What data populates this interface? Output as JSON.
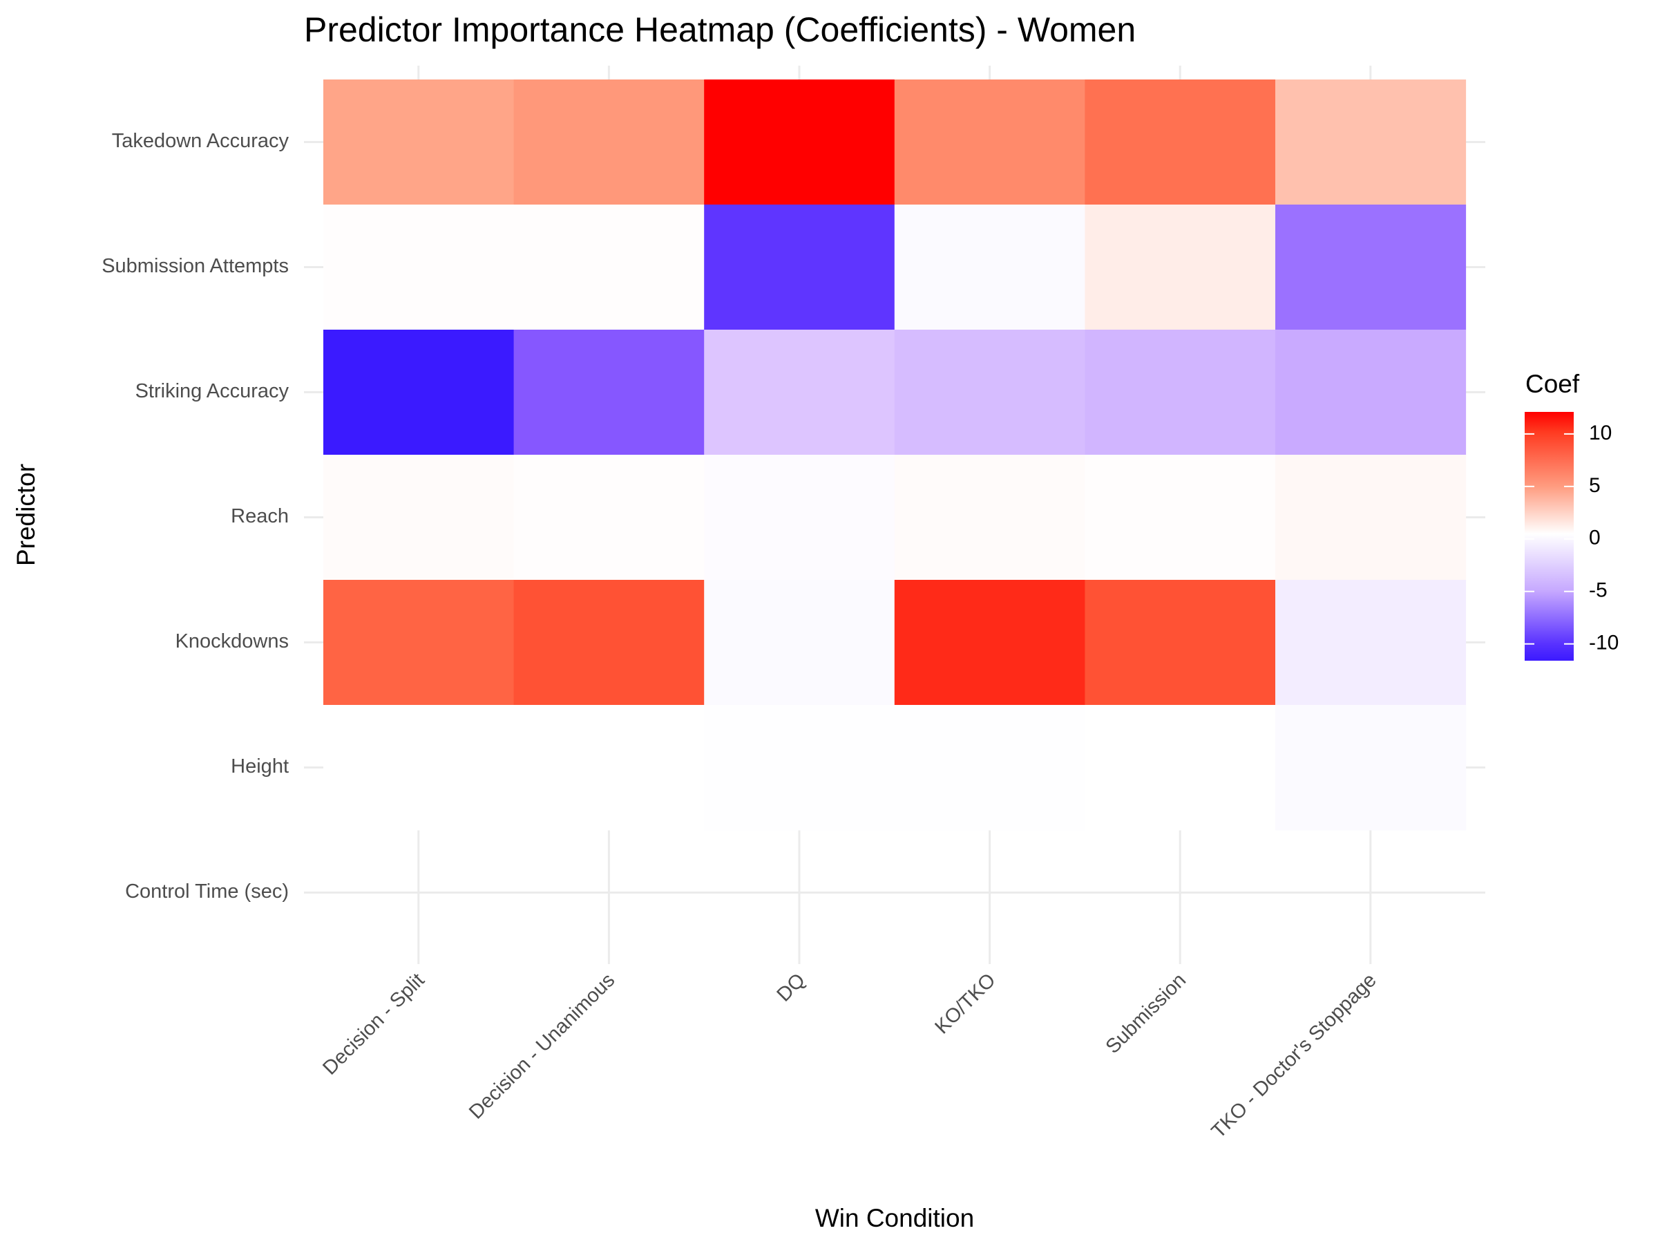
{
  "chart_data": {
    "type": "heatmap",
    "title": "Predictor Importance Heatmap (Coefficients) - Women",
    "xlabel": "Win Condition",
    "ylabel": "Predictor",
    "x_categories": [
      "Decision - Split",
      "Decision - Unanimous",
      "DQ",
      "KO/TKO",
      "Submission",
      "TKO - Doctor's Stoppage"
    ],
    "y_categories": [
      "Takedown Accuracy",
      "Submission Attempts",
      "Striking Accuracy",
      "Reach",
      "Knockdowns",
      "Height",
      "Control Time (sec)"
    ],
    "values": [
      [
        6.0,
        7.0,
        12.1,
        8.0,
        9.0,
        3.5
      ],
      [
        0.1,
        0.1,
        -10.0,
        -0.3,
        1.0,
        -7.5
      ],
      [
        -11.6,
        -8.5,
        -3.0,
        -3.7,
        -4.2,
        -5.0
      ],
      [
        0.2,
        0.1,
        -0.2,
        0.2,
        0.1,
        0.4
      ],
      [
        9.5,
        10.3,
        -0.3,
        11.4,
        10.3,
        -1.0
      ],
      [
        0.0,
        0.0,
        -0.05,
        -0.05,
        0.0,
        -0.3
      ],
      [
        null,
        null,
        null,
        null,
        null,
        null
      ]
    ],
    "legend": {
      "title": "Coef",
      "ticks": [
        "10",
        "5",
        "0",
        "-5",
        "-10"
      ],
      "tick_values": [
        10,
        5,
        0,
        -5,
        -10
      ],
      "range": [
        -11.6,
        12.1
      ],
      "placement": "right"
    },
    "colors": {
      "low": "#3B1AFF",
      "mid": "#FFFFFF",
      "high": "#FF0000"
    }
  }
}
